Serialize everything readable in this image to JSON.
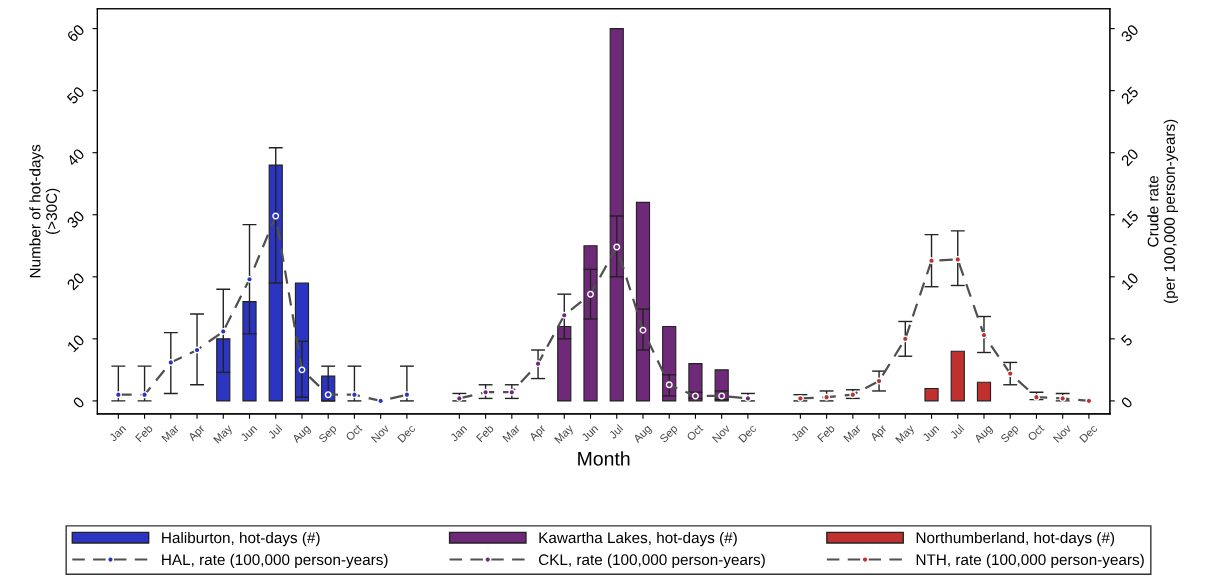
{
  "chart_data": {
    "type": "bar",
    "categories": [
      "Jan",
      "Feb",
      "Mar",
      "Apr",
      "May",
      "Jun",
      "Jul",
      "Aug",
      "Sep",
      "Oct",
      "Nov",
      "Dec",
      null,
      "Jan",
      "Feb",
      "Mar",
      "Apr",
      "May",
      "Jun",
      "Jul",
      "Aug",
      "Sep",
      "Oct",
      "Nov",
      "Dec",
      null,
      "Jan",
      "Feb",
      "Mar",
      "Apr",
      "May",
      "Jun",
      "Jul",
      "Aug",
      "Sep",
      "Oct",
      "Nov",
      "Dec"
    ],
    "xlabel": "Month",
    "ylabel": "Number of hot-days\n(>30C)",
    "y2label": "Crude rate\n(per 100,000 person-years)",
    "ylim": [
      -2.1,
      63.2
    ],
    "yticks": [
      0,
      10,
      20,
      30,
      40,
      50,
      60
    ],
    "y2lim": [
      -1.05,
      31.6
    ],
    "y2ticks": [
      0,
      5,
      10,
      15,
      20,
      25,
      30
    ],
    "legend": "bottom",
    "grid": false,
    "line_style": "dashed",
    "marker": "circle",
    "series": [
      {
        "name": "Haliburton, hot-days (#)",
        "color": "#2b35c2",
        "values": [
          null,
          null,
          null,
          null,
          10,
          16,
          38,
          19,
          4,
          null,
          null,
          null,
          null,
          null,
          null,
          null,
          null,
          null,
          null,
          null,
          null,
          null,
          null,
          null,
          null,
          null,
          null,
          null,
          null,
          null,
          null,
          null,
          null,
          null,
          null,
          null,
          null,
          null
        ]
      },
      {
        "name": "HAL, rate (100,000 person-years)",
        "type": "line",
        "axis": "y2",
        "color": "#2b35c2",
        "values": [
          0.5,
          0.5,
          3.1,
          4.1,
          5.6,
          9.8,
          14.9,
          2.5,
          0.5,
          0.5,
          0,
          0.5,
          null,
          null,
          null,
          null,
          null,
          null,
          null,
          null,
          null,
          null,
          null,
          null,
          null,
          null,
          null,
          null,
          null,
          null,
          null,
          null,
          null,
          null,
          null,
          null,
          null,
          null
        ],
        "errors": [
          [
            0,
            2.8
          ],
          [
            0,
            2.8
          ],
          [
            0.6,
            5.5
          ],
          [
            1.3,
            7
          ],
          [
            2.3,
            9
          ],
          [
            5.4,
            14.2
          ],
          [
            9.5,
            20.4
          ],
          [
            0.3,
            4.8
          ],
          [
            0,
            2.8
          ],
          [
            0,
            2.8
          ],
          null,
          [
            0,
            2.8
          ],
          null,
          null,
          null,
          null,
          null,
          null,
          null,
          null,
          null,
          null,
          null,
          null,
          null,
          null,
          null,
          null,
          null,
          null,
          null,
          null,
          null,
          null,
          null,
          null,
          null,
          null
        ]
      },
      {
        "name": "Kawartha Lakes, hot-days (#)",
        "color": "#6e2a78",
        "values": [
          null,
          null,
          null,
          null,
          null,
          null,
          null,
          null,
          null,
          null,
          null,
          null,
          null,
          null,
          null,
          null,
          null,
          12,
          25,
          60,
          32,
          12,
          6,
          5,
          null,
          null,
          null,
          null,
          null,
          null,
          null,
          null,
          null,
          null,
          null,
          null,
          null,
          null
        ]
      },
      {
        "name": "CKL, rate (100,000 person-years)",
        "type": "line",
        "axis": "y2",
        "color": "#6e2a78",
        "values": [
          null,
          null,
          null,
          null,
          null,
          null,
          null,
          null,
          null,
          null,
          null,
          null,
          null,
          0.2,
          0.7,
          0.7,
          3,
          6.9,
          8.6,
          12.4,
          5.7,
          1.3,
          0.4,
          0.4,
          0.2,
          null,
          null,
          null,
          null,
          null,
          null,
          null,
          null,
          null,
          null,
          null,
          null,
          null
        ],
        "errors": [
          null,
          null,
          null,
          null,
          null,
          null,
          null,
          null,
          null,
          null,
          null,
          null,
          null,
          [
            0,
            0.6
          ],
          [
            0.2,
            1.3
          ],
          [
            0.2,
            1.3
          ],
          [
            1.8,
            4.1
          ],
          [
            5,
            8.6
          ],
          [
            6.6,
            10.6
          ],
          [
            10,
            14.9
          ],
          [
            4.1,
            7.4
          ],
          [
            0.4,
            2.1
          ],
          [
            0.2,
            0.7
          ],
          [
            0.1,
            0.8
          ],
          [
            0,
            0.6
          ],
          null,
          null,
          null,
          null,
          null,
          null,
          null,
          null,
          null,
          null,
          null,
          null,
          null
        ]
      },
      {
        "name": "Northumberland, hot-days (#)",
        "color": "#c0302f",
        "values": [
          null,
          null,
          null,
          null,
          null,
          null,
          null,
          null,
          null,
          null,
          null,
          null,
          null,
          null,
          null,
          null,
          null,
          null,
          null,
          null,
          null,
          null,
          null,
          null,
          null,
          null,
          null,
          null,
          null,
          null,
          null,
          2,
          8,
          3,
          null,
          null,
          null,
          null
        ]
      },
      {
        "name": "NTH, rate (100,000 person-years)",
        "type": "line",
        "axis": "y2",
        "color": "#c0302f",
        "values": [
          null,
          null,
          null,
          null,
          null,
          null,
          null,
          null,
          null,
          null,
          null,
          null,
          null,
          null,
          null,
          null,
          null,
          null,
          null,
          null,
          null,
          null,
          null,
          null,
          null,
          null,
          0.2,
          0.3,
          0.5,
          1.6,
          5,
          11.3,
          11.4,
          5.3,
          2.2,
          0.3,
          0.2,
          0
        ],
        "errors": [
          null,
          null,
          null,
          null,
          null,
          null,
          null,
          null,
          null,
          null,
          null,
          null,
          null,
          null,
          null,
          null,
          null,
          null,
          null,
          null,
          null,
          null,
          null,
          null,
          null,
          null,
          [
            0,
            0.5
          ],
          [
            0,
            0.8
          ],
          [
            0.2,
            0.9
          ],
          [
            0.8,
            2.4
          ],
          [
            3.6,
            6.4
          ],
          [
            9.2,
            13.4
          ],
          [
            9.3,
            13.7
          ],
          [
            3.9,
            6.8
          ],
          [
            1.3,
            3.1
          ],
          [
            0.1,
            0.7
          ],
          [
            0,
            0.6
          ],
          null
        ]
      }
    ]
  }
}
